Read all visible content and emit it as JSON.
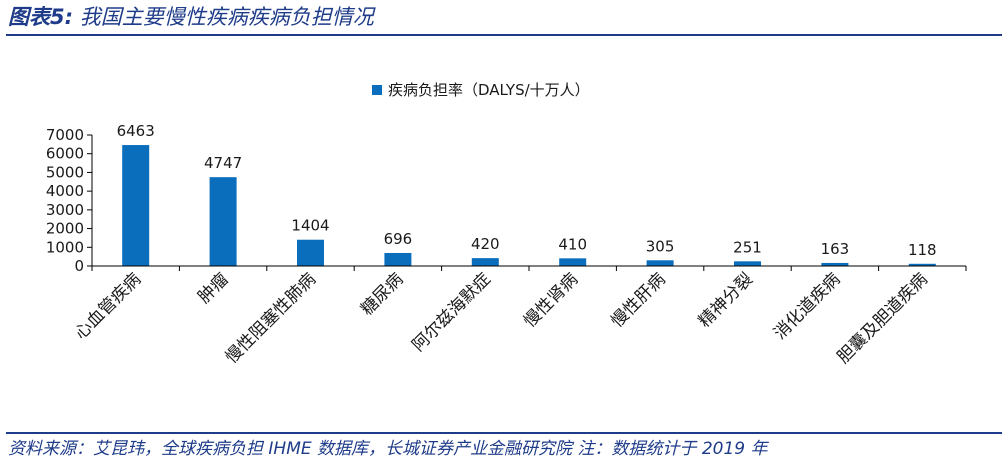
{
  "figure": {
    "number_label": "图表5:",
    "title": "我国主要慢性疾病疾病负担情况"
  },
  "source_note": "资料来源：艾昆玮，全球疾病负担 IHME 数据库，长城证券产业金融研究院 注：数据统计于 2019 年",
  "colors": {
    "bar": "#0a6ebd",
    "accent": "#1f3c8a",
    "axis": "#000000"
  },
  "chart_data": {
    "type": "bar",
    "categories": [
      "心血管疾病",
      "肿瘤",
      "慢性阻塞性肺病",
      "糖尿病",
      "阿尔兹海默症",
      "慢性肾病",
      "慢性肝病",
      "精神分裂",
      "消化道疾病",
      "胆囊及胆道疾病"
    ],
    "series": [
      {
        "name": "疾病负担率（DALYS/十万人）",
        "values": [
          6463,
          4747,
          1404,
          696,
          420,
          410,
          305,
          251,
          163,
          118
        ]
      }
    ],
    "ylim": [
      0,
      7000
    ],
    "yticks": [
      "0",
      "1000",
      "2000",
      "3000",
      "4000",
      "5000",
      "6000",
      "7000"
    ],
    "legend_position": "top-center",
    "grid": false,
    "data_labels": true
  }
}
